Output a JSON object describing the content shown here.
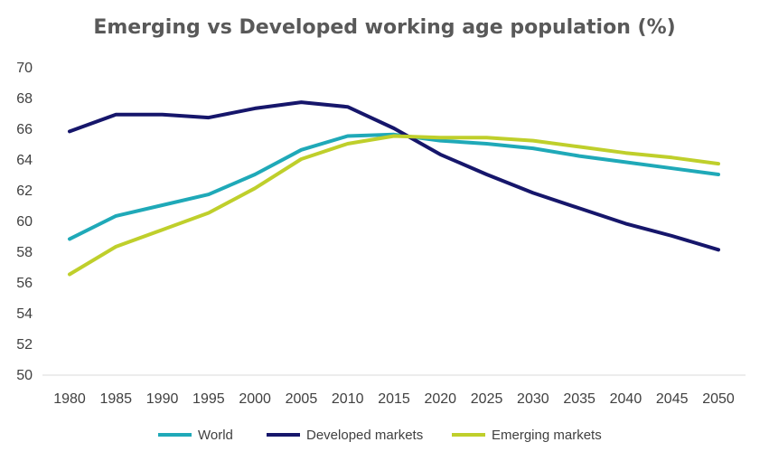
{
  "chart_data": {
    "type": "line",
    "title": "Emerging vs Developed working age population (%)",
    "xlabel": "",
    "ylabel": "",
    "x": [
      "1980",
      "1985",
      "1990",
      "1995",
      "2000",
      "2005",
      "2010",
      "2015",
      "2020",
      "2025",
      "2030",
      "2035",
      "2040",
      "2045",
      "2050"
    ],
    "ylim": [
      50,
      70
    ],
    "yticks": [
      50,
      52,
      54,
      56,
      58,
      60,
      62,
      64,
      66,
      68,
      70
    ],
    "grid": false,
    "legend_position": "bottom",
    "series": [
      {
        "name": "World",
        "color": "#1fa9b8",
        "values": [
          58.8,
          60.3,
          61.0,
          61.7,
          63.0,
          64.6,
          65.5,
          65.6,
          65.2,
          65.0,
          64.7,
          64.2,
          63.8,
          63.4,
          63.0
        ]
      },
      {
        "name": "Developed markets",
        "color": "#16166b",
        "values": [
          65.8,
          66.9,
          66.9,
          66.7,
          67.3,
          67.7,
          67.4,
          66.0,
          64.3,
          63.0,
          61.8,
          60.8,
          59.8,
          59.0,
          58.1
        ]
      },
      {
        "name": "Emerging markets",
        "color": "#bfcf2b",
        "values": [
          56.5,
          58.3,
          59.4,
          60.5,
          62.1,
          64.0,
          65.0,
          65.5,
          65.4,
          65.4,
          65.2,
          64.8,
          64.4,
          64.1,
          63.7
        ]
      }
    ]
  }
}
